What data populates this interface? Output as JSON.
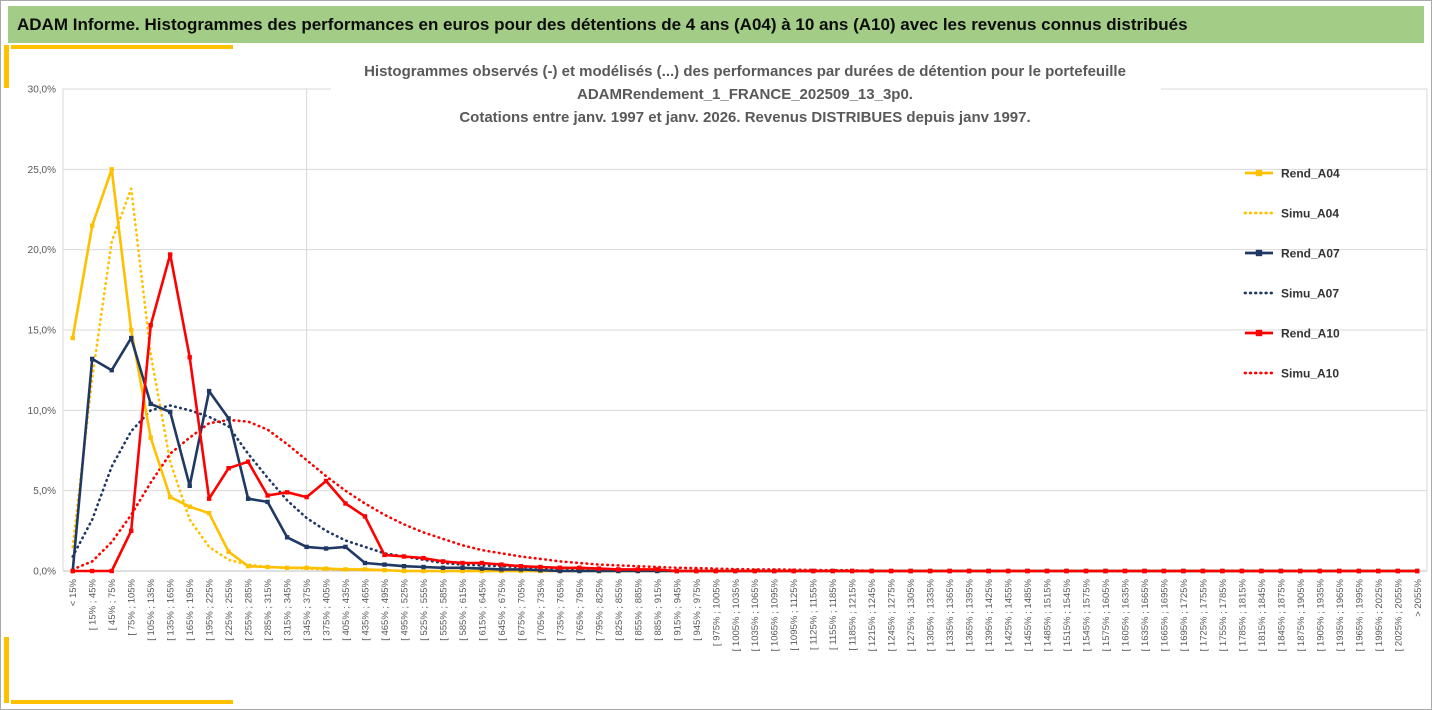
{
  "header": {
    "title": "ADAM Informe. Histogrammes des performances en euros pour des détentions de 4 ans (A04) à 10 ans (A10) avec les revenus connus distribués",
    "background": "#A3CD86"
  },
  "accent_color": "#FFC000",
  "text_colors": {
    "title": "#595959",
    "axis": "#595959",
    "legend": "#333333"
  },
  "chart_data": {
    "type": "line",
    "title_lines": [
      "Histogrammes observés (-) et modélisés (...) des performances par durées de détention pour le portefeuille",
      "ADAMRendement_1_FRANCE_202509_13_3p0.",
      "Cotations entre janv. 1997 et janv. 2026. Revenus DISTRIBUES depuis janv 1997."
    ],
    "xlabel": "",
    "ylabel": "",
    "ylim": [
      0,
      30
    ],
    "ytick_values": [
      0,
      5,
      10,
      15,
      20,
      25,
      30
    ],
    "ytick_labels": [
      "0,0%",
      "5,0%",
      "10,0%",
      "15,0%",
      "20,0%",
      "25,0%",
      "30,0%"
    ],
    "grid": "horizontal",
    "legend_position": "right",
    "vertical_gridline_at_category": 12.5,
    "categories": [
      "< 15%",
      "[ 15% ; 45%",
      "[ 45% ; 75%",
      "[ 75% ; 105%",
      "[ 105% ; 135%",
      "[ 135% ; 165%",
      "[ 165% ; 195%",
      "[ 195% ; 225%",
      "[ 225% ; 255%",
      "[ 255% ; 285%",
      "[ 285% ; 315%",
      "[ 315% ; 345%",
      "[ 345% ; 375%",
      "[ 375% ; 405%",
      "[ 405% ; 435%",
      "[ 435% ; 465%",
      "[ 465% ; 495%",
      "[ 495% ; 525%",
      "[ 525% ; 555%",
      "[ 555% ; 585%",
      "[ 585% ; 615%",
      "[ 615% ; 645%",
      "[ 645% ; 675%",
      "[ 675% ; 705%",
      "[ 705% ; 735%",
      "[ 735% ; 765%",
      "[ 765% ; 795%",
      "[ 795% ; 825%",
      "[ 825% ; 855%",
      "[ 855% ; 885%",
      "[ 885% ; 915%",
      "[ 915% ; 945%",
      "[ 945% ; 975%",
      "[ 975% ; 1005%",
      "[ 1005% ; 1035%",
      "[ 1035% ; 1065%",
      "[ 1065% ; 1095%",
      "[ 1095% ; 1125%",
      "[ 1125% ; 1155%",
      "[ 1155% ; 1185%",
      "[ 1185% ; 1215%",
      "[ 1215% ; 1245%",
      "[ 1245% ; 1275%",
      "[ 1275% ; 1305%",
      "[ 1305% ; 1335%",
      "[ 1335% ; 1365%",
      "[ 1365% ; 1395%",
      "[ 1395% ; 1425%",
      "[ 1425% ; 1455%",
      "[ 1455% ; 1485%",
      "[ 1485% ; 1515%",
      "[ 1515% ; 1545%",
      "[ 1545% ; 1575%",
      "[ 1575% ; 1605%",
      "[ 1605% ; 1635%",
      "[ 1635% ; 1665%",
      "[ 1665% ; 1695%",
      "[ 1695% ; 1725%",
      "[ 1725% ; 1755%",
      "[ 1755% ; 1785%",
      "[ 1785% ; 1815%",
      "[ 1815% ; 1845%",
      "[ 1845% ; 1875%",
      "[ 1875% ; 1905%",
      "[ 1905% ; 1935%",
      "[ 1935% ; 1965%",
      "[ 1965% ; 1995%",
      "[ 1995% ; 2025%",
      "[ 2025% ; 2055%",
      "> 2055%"
    ],
    "series": [
      {
        "name": "Rend_A04",
        "color": "#FFC000",
        "style": "solid",
        "marker": "square",
        "values": [
          14.5,
          21.5,
          25.0,
          15.0,
          8.3,
          4.6,
          4.0,
          3.6,
          1.2,
          0.3,
          0.25,
          0.2,
          0.2,
          0.15,
          0.1,
          0.1,
          0.05,
          0,
          0,
          0,
          0,
          0,
          0,
          0,
          0,
          0,
          0,
          0,
          0,
          0,
          0,
          0,
          0,
          0,
          0,
          0,
          0,
          0,
          0,
          0,
          0,
          0,
          0,
          0,
          0,
          0,
          0,
          0,
          0,
          0,
          0,
          0,
          0,
          0,
          0,
          0,
          0,
          0,
          0,
          0,
          0,
          0,
          0,
          0,
          0,
          0,
          0,
          0,
          0,
          0
        ]
      },
      {
        "name": "Simu_A04",
        "color": "#FFC000",
        "style": "dotted",
        "marker": "none",
        "values": [
          1.5,
          12.0,
          20.5,
          23.8,
          13.5,
          6.8,
          3.2,
          1.5,
          0.7,
          0.4,
          0.25,
          0.2,
          0.15,
          0.1,
          0.1,
          0.05,
          0.05,
          0,
          0,
          0,
          0,
          0,
          0,
          0,
          0,
          0,
          0,
          0,
          0,
          0,
          0,
          0,
          0,
          0,
          0,
          0,
          0,
          0,
          0,
          0,
          0,
          0,
          0,
          0,
          0,
          0,
          0,
          0,
          0,
          0,
          0,
          0,
          0,
          0,
          0,
          0,
          0,
          0,
          0,
          0,
          0,
          0,
          0,
          0,
          0,
          0,
          0,
          0,
          0,
          0
        ]
      },
      {
        "name": "Rend_A07",
        "color": "#1F3864",
        "style": "solid",
        "marker": "square",
        "values": [
          0,
          13.2,
          12.5,
          14.5,
          10.4,
          9.9,
          5.3,
          11.2,
          9.5,
          4.5,
          4.3,
          2.1,
          1.5,
          1.4,
          1.5,
          0.5,
          0.4,
          0.3,
          0.25,
          0.2,
          0.2,
          0.15,
          0.1,
          0.1,
          0.05,
          0,
          0,
          0,
          0,
          0,
          0,
          0,
          0,
          0,
          0,
          0,
          0,
          0,
          0,
          0,
          0,
          0,
          0,
          0,
          0,
          0,
          0,
          0,
          0,
          0,
          0,
          0,
          0,
          0,
          0,
          0,
          0,
          0,
          0,
          0,
          0,
          0,
          0,
          0,
          0,
          0,
          0,
          0,
          0,
          0
        ]
      },
      {
        "name": "Simu_A07",
        "color": "#1F3864",
        "style": "dotted",
        "marker": "none",
        "values": [
          0.9,
          3.2,
          6.5,
          8.7,
          10.0,
          10.3,
          10.0,
          9.6,
          9.0,
          7.3,
          5.8,
          4.4,
          3.3,
          2.5,
          1.9,
          1.5,
          1.1,
          0.9,
          0.7,
          0.5,
          0.4,
          0.35,
          0.3,
          0.25,
          0.2,
          0.15,
          0.1,
          0.1,
          0.05,
          0.05,
          0,
          0,
          0,
          0,
          0,
          0,
          0,
          0,
          0,
          0,
          0,
          0,
          0,
          0,
          0,
          0,
          0,
          0,
          0,
          0,
          0,
          0,
          0,
          0,
          0,
          0,
          0,
          0,
          0,
          0,
          0,
          0,
          0,
          0,
          0,
          0,
          0,
          0,
          0,
          0
        ]
      },
      {
        "name": "Rend_A10",
        "color": "#FF0000",
        "style": "solid",
        "marker": "square",
        "values": [
          0,
          0,
          0,
          2.5,
          15.3,
          19.7,
          13.3,
          4.5,
          6.4,
          6.8,
          4.7,
          4.9,
          4.6,
          5.6,
          4.2,
          3.4,
          1.0,
          0.9,
          0.8,
          0.6,
          0.5,
          0.5,
          0.4,
          0.3,
          0.25,
          0.2,
          0.2,
          0.15,
          0.1,
          0.1,
          0.1,
          0,
          0,
          0,
          0,
          0,
          0,
          0,
          0,
          0,
          0,
          0,
          0,
          0,
          0,
          0,
          0,
          0,
          0,
          0,
          0,
          0,
          0,
          0,
          0,
          0,
          0,
          0,
          0,
          0,
          0,
          0,
          0,
          0,
          0,
          0,
          0,
          0,
          0,
          0
        ]
      },
      {
        "name": "Simu_A10",
        "color": "#FF0000",
        "style": "dotted",
        "marker": "none",
        "values": [
          0.1,
          0.6,
          1.8,
          3.5,
          5.5,
          7.3,
          8.3,
          9.2,
          9.4,
          9.3,
          8.8,
          7.9,
          6.9,
          5.9,
          5.0,
          4.2,
          3.5,
          2.9,
          2.4,
          2.0,
          1.6,
          1.3,
          1.1,
          0.9,
          0.75,
          0.6,
          0.5,
          0.4,
          0.35,
          0.3,
          0.25,
          0.2,
          0.18,
          0.15,
          0.12,
          0.1,
          0.1,
          0.08,
          0.06,
          0.05,
          0.05,
          0,
          0,
          0,
          0,
          0,
          0,
          0,
          0,
          0,
          0,
          0,
          0,
          0,
          0,
          0,
          0,
          0,
          0,
          0,
          0,
          0,
          0,
          0,
          0,
          0,
          0,
          0,
          0,
          0
        ]
      }
    ]
  }
}
